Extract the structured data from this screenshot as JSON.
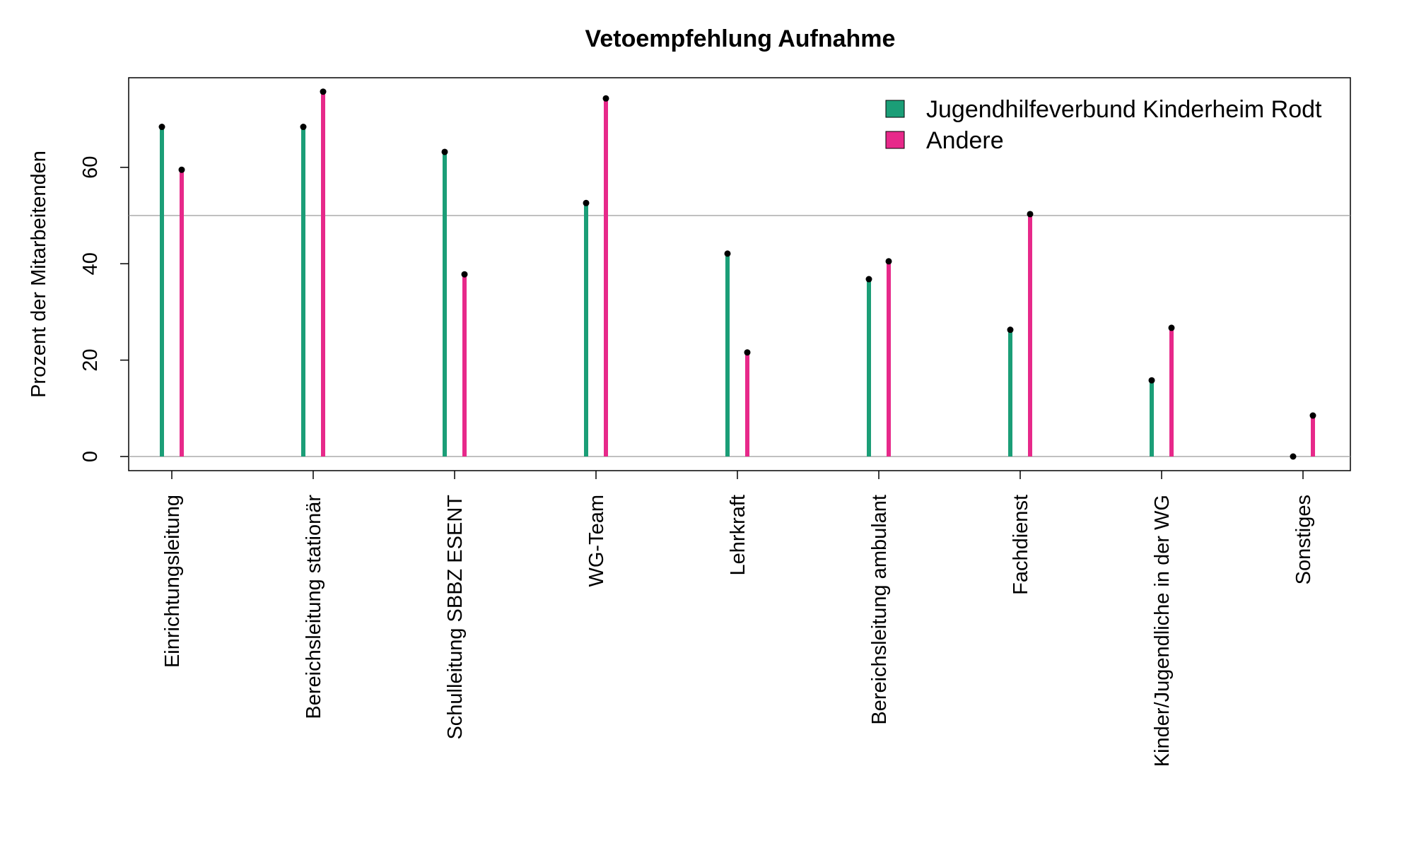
{
  "chart_data": {
    "type": "lollipop",
    "title": "Vetoempfehlung Aufnahme",
    "ylabel": "Prozent der Mitarbeitenden",
    "xlabel": "",
    "ylim": [
      -3,
      78
    ],
    "yticks": [
      0,
      20,
      40,
      60
    ],
    "reference_lines": [
      0,
      50
    ],
    "categories": [
      "Einrichtungsleitung",
      "Bereichsleitung stationär",
      "Schulleitung SBBZ ESENT",
      "WG-Team",
      "Lehrkraft",
      "Bereichsleitung ambulant",
      "Fachdienst",
      "Kinder/Jugendliche in der WG",
      "Sonstiges"
    ],
    "series": [
      {
        "name": "Jugendhilfeverbund Kinderheim Rodt",
        "color": "#1b9e77",
        "values": [
          68.4,
          68.4,
          63.2,
          52.6,
          42.1,
          36.8,
          26.3,
          15.8,
          0
        ]
      },
      {
        "name": "Andere",
        "color": "#e7298a",
        "values": [
          59.5,
          75.7,
          37.8,
          74.3,
          21.6,
          40.5,
          50.3,
          26.7,
          8.5
        ]
      }
    ],
    "legend_position": "top-right",
    "grid": false
  }
}
